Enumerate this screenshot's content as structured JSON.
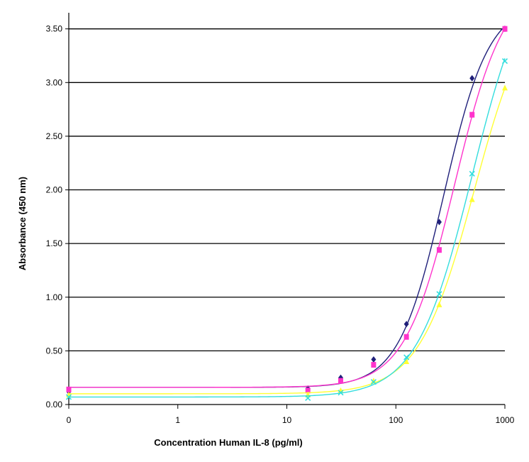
{
  "chart_data": {
    "type": "line",
    "xlabel": "Concentration Human  IL-8 (pg/ml)",
    "ylabel": "Absorbance (450 nm)",
    "x_scale": "log",
    "x_ticks": [
      0,
      1,
      10,
      100,
      1000
    ],
    "x_tick_labels": [
      "0",
      "1",
      "10",
      "100",
      "1000"
    ],
    "y_ticks": [
      0,
      0.5,
      1.0,
      1.5,
      2.0,
      2.5,
      3.0,
      3.5
    ],
    "y_tick_labels": [
      "0.00",
      "0.50",
      "1.00",
      "1.50",
      "2.00",
      "2.50",
      "3.00",
      "3.50"
    ],
    "ylim": [
      0,
      3.65
    ],
    "grid": "horizontal",
    "legend": "none",
    "series": [
      {
        "color": "#1f1f7a",
        "marker": "diamond",
        "points": [
          [
            0,
            0.12
          ],
          [
            15.6,
            0.15
          ],
          [
            31.2,
            0.25
          ],
          [
            62.5,
            0.42
          ],
          [
            125,
            0.75
          ],
          [
            250,
            1.7
          ],
          [
            500,
            3.04
          ],
          [
            1000,
            3.5
          ]
        ]
      },
      {
        "color": "#ff33cc",
        "marker": "square",
        "points": [
          [
            0,
            0.14
          ],
          [
            15.6,
            0.13
          ],
          [
            31.2,
            0.22
          ],
          [
            62.5,
            0.37
          ],
          [
            125,
            0.63
          ],
          [
            250,
            1.44
          ],
          [
            500,
            2.7
          ],
          [
            1000,
            3.5
          ]
        ]
      },
      {
        "color": "#ffff33",
        "marker": "triangle",
        "points": [
          [
            0,
            0.09
          ],
          [
            15.6,
            0.09
          ],
          [
            31.2,
            0.13
          ],
          [
            62.5,
            0.22
          ],
          [
            125,
            0.4
          ],
          [
            250,
            0.93
          ],
          [
            500,
            1.91
          ],
          [
            1000,
            2.95
          ]
        ]
      },
      {
        "color": "#33dddd",
        "marker": "x",
        "points": [
          [
            0,
            0.07
          ],
          [
            15.6,
            0.06
          ],
          [
            31.2,
            0.11
          ],
          [
            62.5,
            0.21
          ],
          [
            125,
            0.44
          ],
          [
            250,
            1.03
          ],
          [
            500,
            2.15
          ],
          [
            1000,
            3.2
          ]
        ]
      }
    ]
  }
}
